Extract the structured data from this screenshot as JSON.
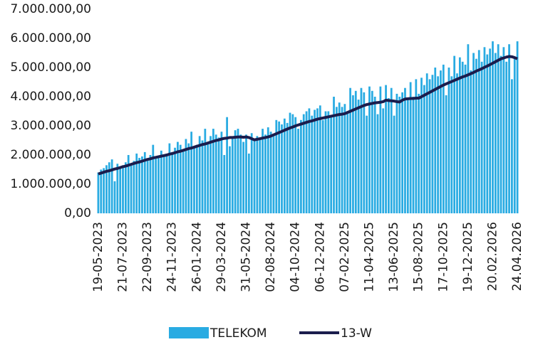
{
  "chart_data": {
    "type": "bar-line",
    "categories": [
      "19-05-2023",
      null,
      null,
      null,
      null,
      null,
      null,
      null,
      null,
      "21-07-2023",
      null,
      null,
      null,
      null,
      null,
      null,
      null,
      null,
      "22-09-2023",
      null,
      null,
      null,
      null,
      null,
      null,
      null,
      null,
      "24-11-2023",
      null,
      null,
      null,
      null,
      null,
      null,
      null,
      null,
      "26-01-2024",
      null,
      null,
      null,
      null,
      null,
      null,
      null,
      null,
      "29-03-2024",
      null,
      null,
      null,
      null,
      null,
      null,
      null,
      null,
      "31-05-2024",
      null,
      null,
      null,
      null,
      null,
      null,
      null,
      null,
      "02-08-2024",
      null,
      null,
      null,
      null,
      null,
      null,
      null,
      null,
      "04-10-2024",
      null,
      null,
      null,
      null,
      null,
      null,
      null,
      null,
      "06-12-2024",
      null,
      null,
      null,
      null,
      null,
      null,
      null,
      null,
      "07-02-2025",
      null,
      null,
      null,
      null,
      null,
      null,
      null,
      null,
      "11-04-2025",
      null,
      null,
      null,
      null,
      null,
      null,
      null,
      null,
      "13-06-2025",
      null,
      null,
      null,
      null,
      null,
      null,
      null,
      null,
      "15-08-2025",
      null,
      null,
      null,
      null,
      null,
      null,
      null,
      null,
      "17-10-2025",
      null,
      null,
      null,
      null,
      null,
      null,
      null,
      null,
      "19-12-2025",
      null,
      null,
      null,
      null,
      null,
      null,
      null,
      null,
      "20.02.2026",
      null,
      null,
      null,
      null,
      null,
      null,
      null,
      null,
      "24.04.2026"
    ],
    "series": [
      {
        "name": "TELEKOM",
        "kind": "bar",
        "color": "#29abe2",
        "values": [
          1400000,
          1500000,
          1550000,
          1650000,
          1750000,
          1850000,
          1100000,
          1700000,
          1600000,
          1650000,
          1750000,
          2000000,
          1700000,
          1800000,
          2050000,
          1900000,
          1950000,
          2100000,
          1850000,
          2000000,
          2350000,
          1900000,
          1950000,
          2150000,
          2000000,
          2050000,
          2400000,
          2100000,
          2250000,
          2450000,
          2350000,
          2200000,
          2550000,
          2400000,
          2800000,
          2250000,
          2350000,
          2650000,
          2500000,
          2900000,
          2400000,
          2650000,
          2900000,
          2700000,
          2600000,
          2800000,
          2000000,
          3300000,
          2300000,
          2600000,
          2850000,
          2900000,
          2700000,
          2450000,
          2700000,
          2050000,
          2750000,
          2500000,
          2650000,
          2600000,
          2900000,
          2700000,
          2950000,
          2800000,
          2650000,
          3200000,
          3150000,
          3050000,
          3250000,
          3100000,
          3450000,
          3400000,
          3300000,
          2900000,
          3200000,
          3400000,
          3500000,
          3600000,
          3350000,
          3550000,
          3600000,
          3700000,
          3200000,
          3500000,
          3500000,
          3350000,
          4000000,
          3650000,
          3800000,
          3650000,
          3750000,
          3500000,
          4300000,
          4050000,
          4200000,
          3900000,
          4300000,
          4150000,
          3350000,
          4350000,
          4200000,
          4000000,
          3400000,
          4350000,
          3600000,
          4400000,
          3950000,
          4300000,
          3350000,
          4100000,
          4000000,
          4150000,
          4300000,
          3900000,
          4500000,
          4000000,
          4600000,
          4100000,
          4650000,
          4400000,
          4800000,
          4600000,
          4750000,
          5000000,
          4700000,
          4900000,
          5100000,
          4050000,
          5000000,
          4700000,
          5400000,
          4800000,
          5350000,
          5200000,
          5100000,
          5800000,
          4900000,
          5500000,
          5300000,
          5600000,
          5200000,
          5700000,
          5450000,
          5650000,
          5900000,
          5500000,
          5800000,
          5400000,
          5700000,
          5200000,
          5800000,
          4600000,
          5300000,
          5900000
        ]
      },
      {
        "name": "13-W",
        "kind": "line",
        "color": "#1b1d4d",
        "values": [
          1350000,
          1380000,
          1410000,
          1440000,
          1460000,
          1490000,
          1520000,
          1540000,
          1570000,
          1600000,
          1620000,
          1650000,
          1680000,
          1710000,
          1740000,
          1760000,
          1790000,
          1820000,
          1850000,
          1870000,
          1900000,
          1920000,
          1940000,
          1960000,
          1980000,
          2000000,
          2030000,
          2050000,
          2080000,
          2110000,
          2130000,
          2160000,
          2190000,
          2220000,
          2240000,
          2270000,
          2300000,
          2330000,
          2360000,
          2380000,
          2410000,
          2440000,
          2470000,
          2500000,
          2520000,
          2550000,
          2570000,
          2580000,
          2600000,
          2600000,
          2610000,
          2620000,
          2620000,
          2610000,
          2620000,
          2600000,
          2560000,
          2520000,
          2540000,
          2560000,
          2580000,
          2600000,
          2620000,
          2650000,
          2690000,
          2730000,
          2770000,
          2810000,
          2850000,
          2890000,
          2930000,
          2960000,
          3000000,
          3030000,
          3060000,
          3090000,
          3120000,
          3150000,
          3170000,
          3200000,
          3230000,
          3250000,
          3270000,
          3290000,
          3310000,
          3330000,
          3350000,
          3370000,
          3390000,
          3400000,
          3420000,
          3460000,
          3500000,
          3540000,
          3580000,
          3620000,
          3660000,
          3700000,
          3730000,
          3750000,
          3770000,
          3790000,
          3800000,
          3810000,
          3830000,
          3880000,
          3870000,
          3860000,
          3850000,
          3830000,
          3820000,
          3880000,
          3920000,
          3930000,
          3940000,
          3940000,
          3950000,
          3950000,
          4000000,
          4050000,
          4100000,
          4150000,
          4200000,
          4250000,
          4300000,
          4350000,
          4400000,
          4440000,
          4480000,
          4520000,
          4560000,
          4600000,
          4640000,
          4680000,
          4710000,
          4750000,
          4790000,
          4830000,
          4880000,
          4920000,
          4960000,
          5010000,
          5050000,
          5100000,
          5150000,
          5200000,
          5250000,
          5300000,
          5330000,
          5360000,
          5380000,
          5370000,
          5340000,
          5300000
        ]
      }
    ],
    "ylim": [
      0,
      7000000
    ],
    "yticks": [
      {
        "value": 0,
        "label": "0,00"
      },
      {
        "value": 1000000,
        "label": "1.000.000,00"
      },
      {
        "value": 2000000,
        "label": "2.000.000,00"
      },
      {
        "value": 3000000,
        "label": "3.000.000,00"
      },
      {
        "value": 4000000,
        "label": "4.000.000,00"
      },
      {
        "value": 5000000,
        "label": "5.000.000,00"
      },
      {
        "value": 6000000,
        "label": "6.000.000,00"
      },
      {
        "value": 7000000,
        "label": "7.000.000,00"
      }
    ],
    "grid": false,
    "legend": "bottom"
  }
}
